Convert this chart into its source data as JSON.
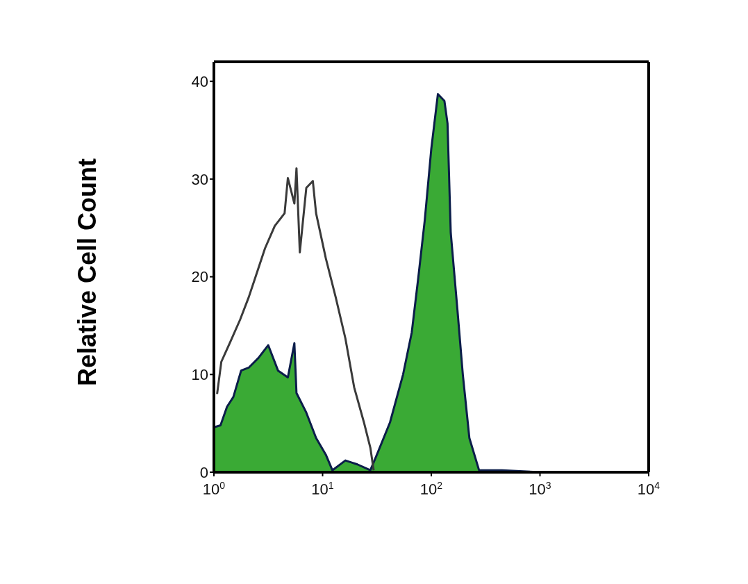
{
  "chart_data": {
    "type": "area",
    "ylabel": "Relative Cell Count",
    "log": "x",
    "xlim": [
      1,
      10000
    ],
    "xticks": [
      {
        "value": 1,
        "label": "10$^{0}$"
      },
      {
        "value": 10,
        "label": "10$^{1}$"
      },
      {
        "value": 100,
        "label": "10$^{2}$"
      },
      {
        "value": 1000,
        "label": "10$^{3}$"
      },
      {
        "value": 10000,
        "label": "10$^{4}$"
      }
    ],
    "ylim": [
      0,
      42
    ],
    "yticks": [
      0,
      10,
      20,
      30,
      40
    ],
    "grid": false,
    "series": [
      {
        "type": "line",
        "color": "#3a3a3a",
        "x": [
          1.07,
          1.17,
          1.41,
          1.74,
          2.09,
          2.4,
          2.95,
          3.63,
          4.47,
          4.79,
          5.5,
          5.75,
          6.17,
          7.08,
          8.13,
          8.71,
          10.7,
          13.2,
          16.2,
          19.5,
          24,
          27.5,
          29.5
        ],
        "values": [
          8,
          11.3,
          13.3,
          15.6,
          17.9,
          19.9,
          22.9,
          25.2,
          26.5,
          30.1,
          27.5,
          31.1,
          22.5,
          29.1,
          29.8,
          26.5,
          21.9,
          17.9,
          13.7,
          8.7,
          5.1,
          2.5,
          0.2
        ]
      },
      {
        "color": "#3aaa35",
        "x": [
          1,
          1.15,
          1.32,
          1.51,
          1.78,
          2.09,
          2.57,
          3.16,
          3.89,
          4.79,
          5.5,
          5.75,
          7.08,
          8.71,
          10.7,
          12.3,
          16.2,
          20.9,
          27.5,
          31.6,
          41.7,
          55,
          66.1,
          75.9,
          87.1,
          100,
          115,
          132,
          141,
          151,
          174,
          195,
          224,
          275,
          447,
          1000,
          10000
        ],
        "values": [
          4.6,
          4.8,
          6.7,
          7.7,
          10.4,
          10.7,
          11.7,
          13,
          10.4,
          9.7,
          13.2,
          8.1,
          6.1,
          3.5,
          1.8,
          0.2,
          1.2,
          0.8,
          0.2,
          1.8,
          5.1,
          10,
          14.3,
          19.9,
          25.8,
          33.1,
          38.7,
          38,
          35.7,
          24.5,
          16.6,
          10,
          3.5,
          0.2,
          0.2,
          0,
          0
        ]
      }
    ]
  }
}
